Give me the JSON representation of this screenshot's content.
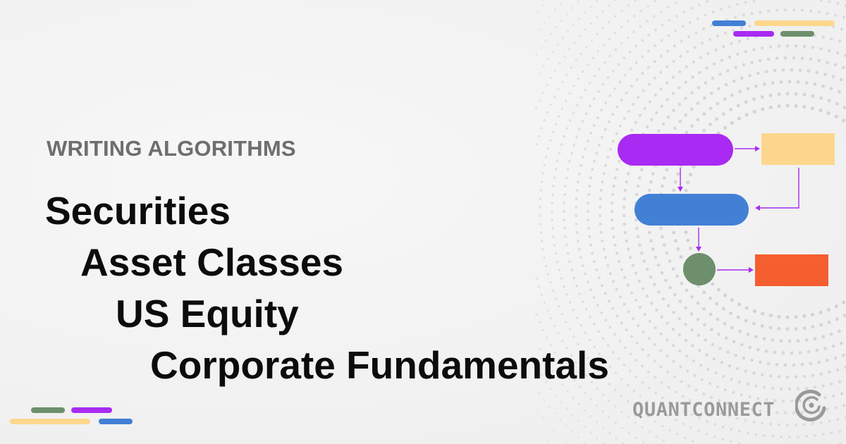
{
  "eyebrow": "WRITING ALGORITHMS",
  "breadcrumb": [
    "Securities",
    "Asset Classes",
    "US Equity",
    "Corporate Fundamentals"
  ],
  "brand": {
    "name": "QUANTCONNECT",
    "logo_icon": "quantconnect-logo-icon"
  },
  "colors": {
    "purple": "#a92af2",
    "yellow": "#fcd78d",
    "blue": "#4280d6",
    "green": "#6e8f6b",
    "orange": "#f55e2e",
    "text_dark": "#0c0c0c",
    "text_gray": "#6e6e6e",
    "brand_gray": "#9a9a9a"
  }
}
